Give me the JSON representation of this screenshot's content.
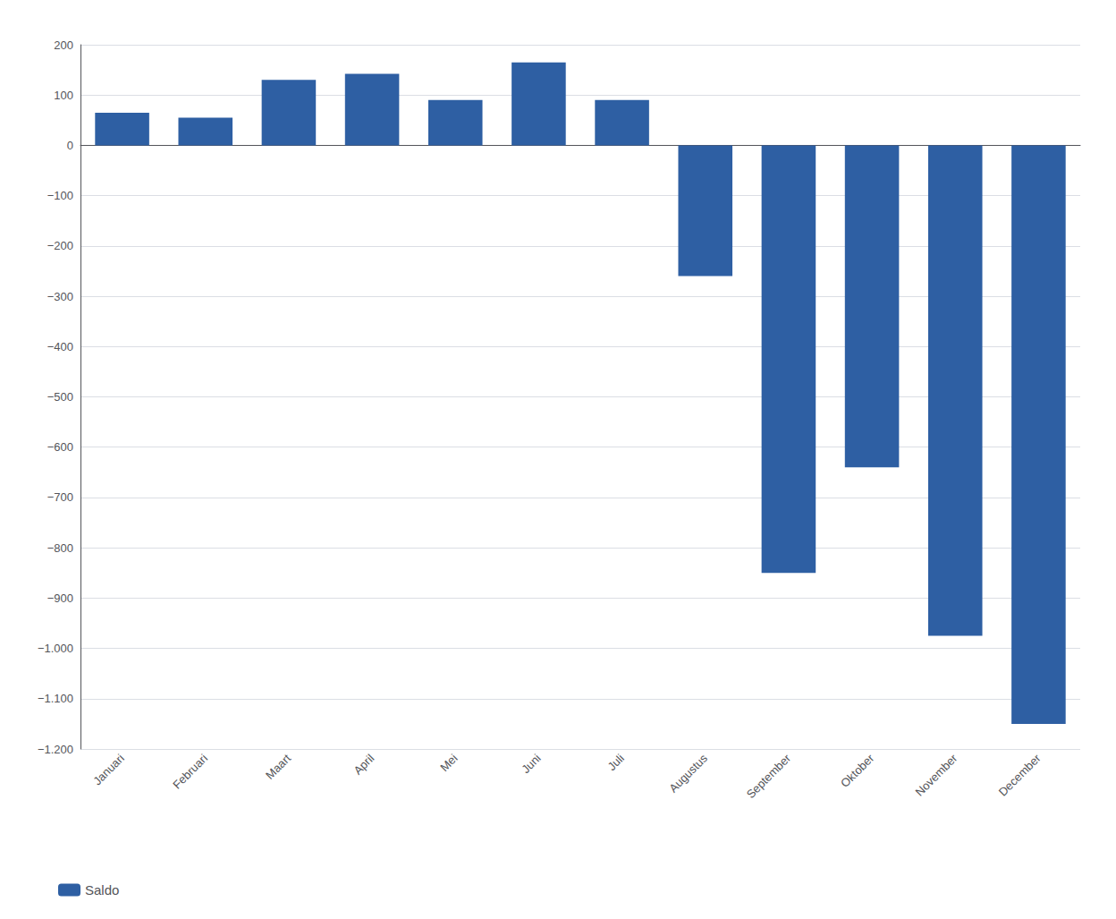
{
  "chart_data": {
    "type": "bar",
    "categories": [
      "Januari",
      "Februari",
      "Maart",
      "April",
      "Mei",
      "Juni",
      "Juli",
      "Augustus",
      "September",
      "Oktober",
      "November",
      "December"
    ],
    "series": [
      {
        "name": "Saldo",
        "color": "#2E5FA3",
        "values": [
          65,
          55,
          130,
          142,
          90,
          165,
          90,
          -260,
          -850,
          -640,
          -975,
          -1150
        ]
      }
    ],
    "ylim": [
      -1200,
      200
    ],
    "yticks": [
      200,
      100,
      0,
      {
        "value": -100,
        "label": "−100"
      },
      {
        "value": -200,
        "label": "−200"
      },
      {
        "value": -300,
        "label": "−300"
      },
      {
        "value": -400,
        "label": "−400"
      },
      {
        "value": -500,
        "label": "−500"
      },
      {
        "value": -600,
        "label": "−600"
      },
      {
        "value": -700,
        "label": "−700"
      },
      {
        "value": -800,
        "label": "−800"
      },
      {
        "value": -900,
        "label": "−900"
      },
      {
        "value": -1000,
        "label": "−1.000"
      },
      {
        "value": -1100,
        "label": "−1.100"
      },
      {
        "value": -1200,
        "label": "−1.200"
      }
    ],
    "grid": true,
    "legend": "lower left"
  }
}
